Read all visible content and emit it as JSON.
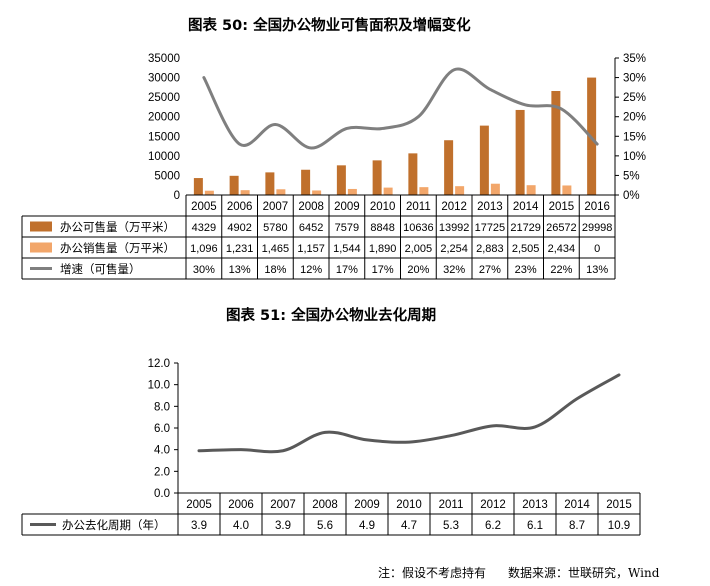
{
  "chart_data": [
    {
      "type": "bar+line",
      "title": "图表  50: 全国办公物业可售面积及增幅变化",
      "categories": [
        "2005",
        "2006",
        "2007",
        "2008",
        "2009",
        "2010",
        "2011",
        "2012",
        "2013",
        "2014",
        "2015",
        "2016"
      ],
      "series": [
        {
          "name": "办公可售量（万平米）",
          "kind": "bar",
          "axis": "left",
          "color": "#C0702C",
          "values": [
            4329,
            4902,
            5780,
            6452,
            7579,
            8848,
            10636,
            13992,
            17725,
            21729,
            26572,
            29998
          ],
          "labels": [
            "4329",
            "4902",
            "5780",
            "6452",
            "7579",
            "8848",
            "10636",
            "13992",
            "17725",
            "21729",
            "26572",
            "29998"
          ]
        },
        {
          "name": "办公销售量（万平米）",
          "kind": "bar",
          "axis": "left",
          "color": "#F2A66A",
          "values": [
            1096,
            1231,
            1465,
            1157,
            1544,
            1890,
            2005,
            2254,
            2883,
            2505,
            2434,
            0
          ],
          "labels": [
            "1,096",
            "1,231",
            "1,465",
            "1,157",
            "1,544",
            "1,890",
            "2,005",
            "2,254",
            "2,883",
            "2,505",
            "2,434",
            "0"
          ]
        },
        {
          "name": "增速（可售量）",
          "kind": "line",
          "axis": "right",
          "color": "#7F7F7F",
          "values": [
            30,
            13,
            18,
            12,
            17,
            17,
            20,
            32,
            27,
            23,
            22,
            13
          ],
          "labels": [
            "30%",
            "13%",
            "18%",
            "12%",
            "17%",
            "17%",
            "20%",
            "32%",
            "27%",
            "23%",
            "22%",
            "13%"
          ]
        }
      ],
      "ylim_left": [
        0,
        35000
      ],
      "yticks_left": [
        "0",
        "5000",
        "10000",
        "15000",
        "20000",
        "25000",
        "30000",
        "35000"
      ],
      "ylim_right": [
        0,
        35
      ],
      "yticks_right": [
        "0%",
        "5%",
        "10%",
        "15%",
        "20%",
        "25%",
        "30%",
        "35%"
      ],
      "grid": false,
      "legend": "data-table"
    },
    {
      "type": "line",
      "title": "图表  51: 全国办公物业去化周期",
      "categories": [
        "2005",
        "2006",
        "2007",
        "2008",
        "2009",
        "2010",
        "2011",
        "2012",
        "2013",
        "2014",
        "2015"
      ],
      "series": [
        {
          "name": "办公去化周期（年）",
          "color": "#595959",
          "values": [
            3.9,
            4.0,
            3.9,
            5.6,
            4.9,
            4.7,
            5.3,
            6.2,
            6.1,
            8.7,
            10.9
          ],
          "labels": [
            "3.9",
            "4.0",
            "3.9",
            "5.6",
            "4.9",
            "4.7",
            "5.3",
            "6.2",
            "6.1",
            "8.7",
            "10.9"
          ]
        }
      ],
      "ylim": [
        0,
        12
      ],
      "yticks": [
        "0.0",
        "2.0",
        "4.0",
        "6.0",
        "8.0",
        "10.0",
        "12.0"
      ],
      "grid": false,
      "legend": "data-table"
    }
  ],
  "footer": {
    "note": "注：假设不考虑持有",
    "source": "数据来源：世联研究，Wind"
  }
}
